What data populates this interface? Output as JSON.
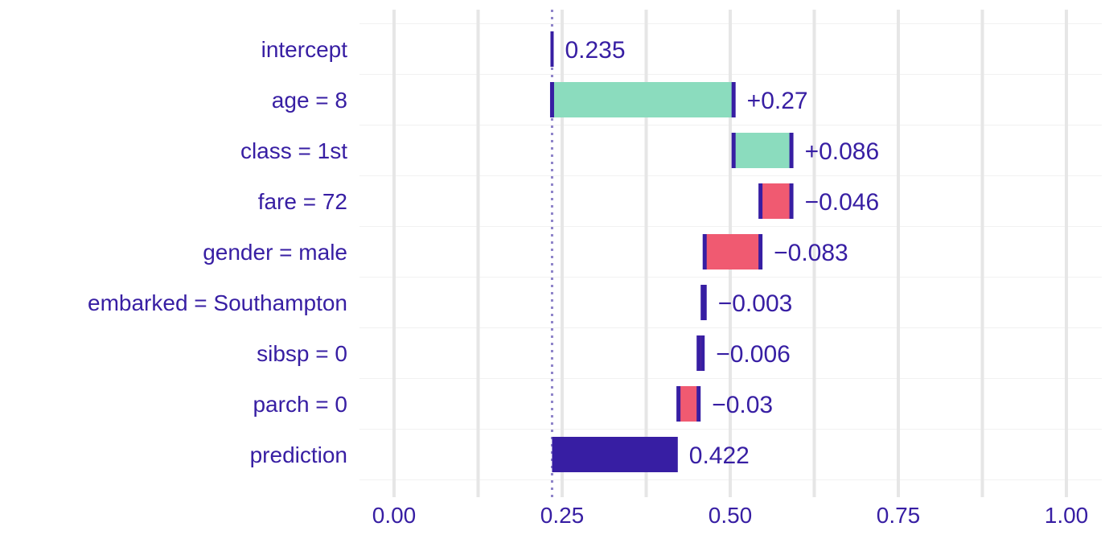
{
  "chart_data": {
    "type": "waterfall",
    "baseline": 0.235,
    "categories": [
      "intercept",
      "age = 8",
      "class = 1st",
      "fare = 72",
      "gender = male",
      "embarked = Southampton",
      "sibsp = 0",
      "parch = 0",
      "prediction"
    ],
    "values": [
      0.235,
      0.27,
      0.086,
      -0.046,
      -0.083,
      -0.003,
      -0.006,
      -0.03,
      0.422
    ],
    "labels": [
      "0.235",
      "+0.27",
      "+0.086",
      "−0.046",
      "−0.083",
      "−0.003",
      "−0.006",
      "−0.03",
      "0.422"
    ],
    "xticks": [
      "0.00",
      "0.25",
      "0.50",
      "0.75",
      "1.00"
    ],
    "xlim": [
      0,
      1
    ],
    "grid": true,
    "colors": {
      "positive": "#8bdcbe",
      "negative": "#f05a71",
      "prediction": "#371ea3",
      "marker": "#371ea3",
      "text": "#371ea3",
      "grid": "#e6e6e6",
      "baseline_line": "#8e83c9"
    }
  }
}
